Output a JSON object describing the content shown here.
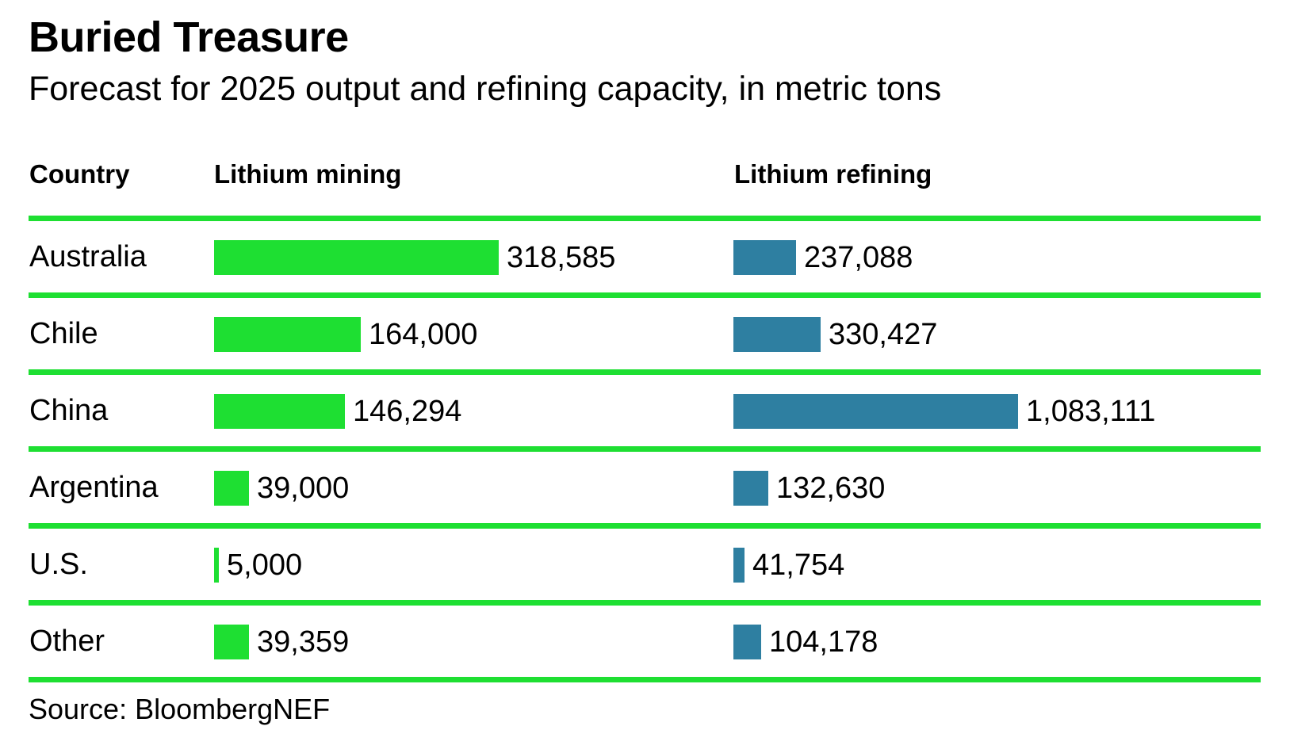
{
  "header": {
    "title": "Buried Treasure",
    "subtitle": "Forecast for 2025 output and refining capacity, in metric tons"
  },
  "columns": {
    "country_label": "Country",
    "mining_label": "Lithium mining",
    "refining_label": "Lithium refining"
  },
  "source_label": "Source: BloombergNEF",
  "colors": {
    "mining_bar": "#1EDF32",
    "refining_bar": "#2E7FA1",
    "row_divider": "#1EDF32",
    "text": "#000000",
    "background": "#FFFFFF"
  },
  "chart_data": {
    "type": "bar",
    "orientation": "horizontal",
    "title": "Buried Treasure",
    "subtitle": "Forecast for 2025 output and refining capacity, in metric tons",
    "unit": "metric tons",
    "categories": [
      "Australia",
      "Chile",
      "China",
      "Argentina",
      "U.S.",
      "Other"
    ],
    "series": [
      {
        "name": "Lithium mining",
        "color": "#1EDF32",
        "values": [
          318585,
          164000,
          146294,
          39000,
          5000,
          39359
        ],
        "labels": [
          "318,585",
          "164,000",
          "146,294",
          "39,000",
          "5,000",
          "39,359"
        ]
      },
      {
        "name": "Lithium refining",
        "color": "#2E7FA1",
        "values": [
          237088,
          330427,
          1083111,
          132630,
          41754,
          104178
        ],
        "labels": [
          "237,088",
          "330,427",
          "1,083,111",
          "132,630",
          "41,754",
          "104,178"
        ]
      }
    ],
    "layout": {
      "legend": "none",
      "grid": "green-row-dividers",
      "bars_normalized_per_column_max": true,
      "value_labels": "right-of-bar"
    },
    "source": "Source: BloombergNEF"
  }
}
